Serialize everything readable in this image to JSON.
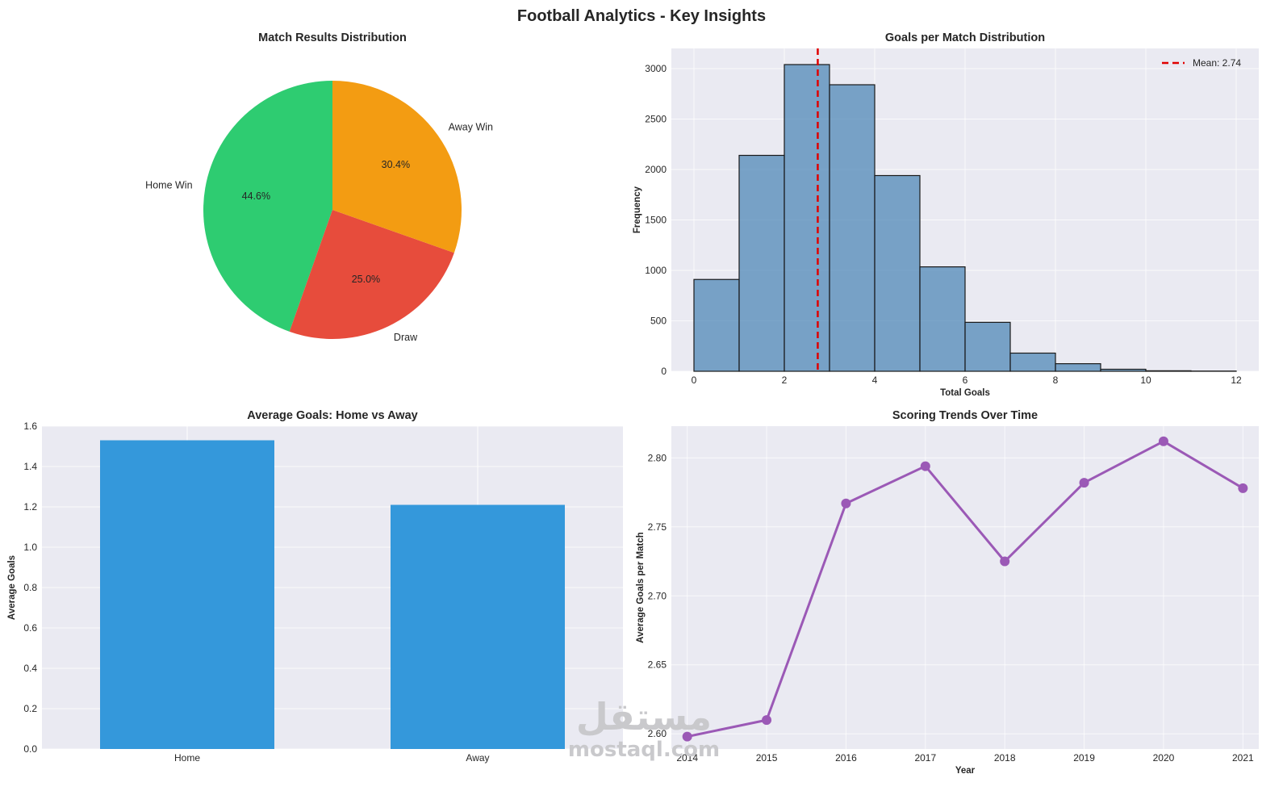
{
  "figure_title": "Football Analytics - Key Insights",
  "colors": {
    "panel_bg": "#eaeaf2",
    "grid": "#ffffff",
    "home_win": "#2ecc71",
    "draw": "#e74c3c",
    "away_win": "#f39c12",
    "hist_fill": "#4682b4",
    "mean_line": "#e00000",
    "bar_fill": "#3498db",
    "trend_line": "#9b59b6"
  },
  "watermark": {
    "arabic": "مستقل",
    "latin": "mostaql.com"
  },
  "chart_data": [
    {
      "type": "pie",
      "title": "Match Results Distribution",
      "labels": [
        "Home Win",
        "Draw",
        "Away Win"
      ],
      "values": [
        44.6,
        25.0,
        30.4
      ],
      "value_labels": [
        "44.6%",
        "25.0%",
        "30.4%"
      ],
      "start_angle_deg": 90,
      "direction": "clockwise-from-top: Draw, Away Win, Home Win"
    },
    {
      "type": "bar",
      "subtype": "histogram",
      "title": "Goals per Match Distribution",
      "xlabel": "Total Goals",
      "ylabel": "Frequency",
      "bin_edges": [
        0,
        1,
        2,
        3,
        4,
        5,
        6,
        7,
        8,
        9,
        10,
        11,
        12
      ],
      "values": [
        910,
        2140,
        3040,
        2840,
        1940,
        1035,
        485,
        180,
        75,
        20,
        5,
        2
      ],
      "xlim": [
        -0.5,
        12.5
      ],
      "ylim": [
        0,
        3200
      ],
      "xticks": [
        0,
        2,
        4,
        6,
        8,
        10,
        12
      ],
      "yticks": [
        0,
        500,
        1000,
        1500,
        2000,
        2500,
        3000
      ],
      "mean_line": {
        "value": 2.74,
        "legend_label": "Mean: 2.74"
      },
      "legend": "top-right",
      "grid": true
    },
    {
      "type": "bar",
      "title": "Average Goals: Home vs Away",
      "categories": [
        "Home",
        "Away"
      ],
      "values": [
        1.53,
        1.21
      ],
      "xlabel": "",
      "ylabel": "Average Goals",
      "ylim": [
        0,
        1.6
      ],
      "yticks": [
        0.0,
        0.2,
        0.4,
        0.6,
        0.8,
        1.0,
        1.2,
        1.4,
        1.6
      ],
      "ytick_labels": [
        "0.0",
        "0.2",
        "0.4",
        "0.6",
        "0.8",
        "1.0",
        "1.2",
        "1.4",
        "1.6"
      ],
      "grid": true
    },
    {
      "type": "line",
      "title": "Scoring Trends Over Time",
      "xlabel": "Year",
      "ylabel": "Average Goals per Match",
      "x": [
        2014,
        2015,
        2016,
        2017,
        2018,
        2019,
        2020,
        2021
      ],
      "y": [
        2.598,
        2.61,
        2.767,
        2.794,
        2.725,
        2.782,
        2.812,
        2.778
      ],
      "xlim": [
        2013.8,
        2021.2
      ],
      "ylim": [
        2.589,
        2.823
      ],
      "yticks": [
        2.6,
        2.65,
        2.7,
        2.75,
        2.8
      ],
      "ytick_labels": [
        "2.60",
        "2.65",
        "2.70",
        "2.75",
        "2.80"
      ],
      "markers": true,
      "grid": true
    }
  ]
}
